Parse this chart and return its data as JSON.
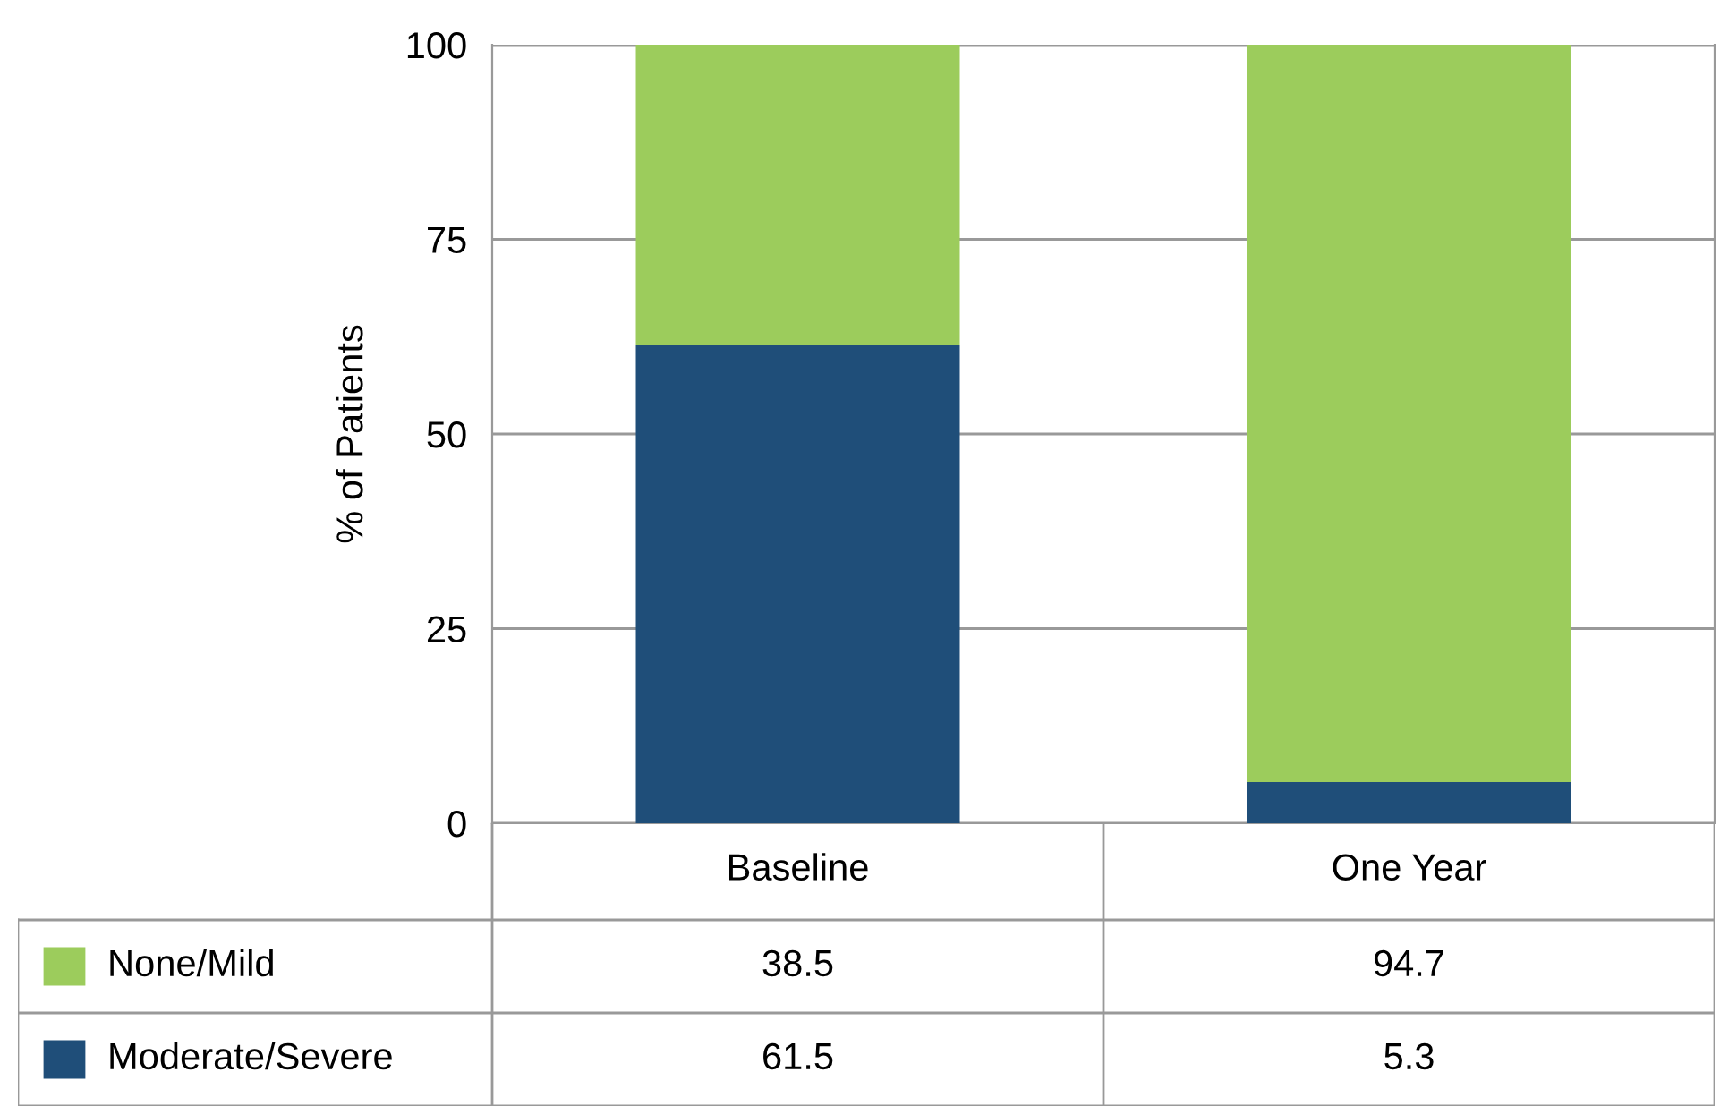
{
  "chart_data": {
    "type": "bar",
    "stacked": true,
    "ylabel": "% of Patients",
    "categories": [
      "Baseline",
      "One Year"
    ],
    "series": [
      {
        "name": "Moderate/Severe",
        "color": "#1f4e79",
        "values": [
          61.5,
          5.3
        ]
      },
      {
        "name": "None/Mild",
        "color": "#9ccc5c",
        "values": [
          38.5,
          94.7
        ]
      }
    ],
    "ylim": [
      0,
      100
    ],
    "yticks": [
      0,
      25,
      50,
      75,
      100
    ],
    "grid": "y",
    "data_labels": true,
    "legend": "bottom left"
  }
}
